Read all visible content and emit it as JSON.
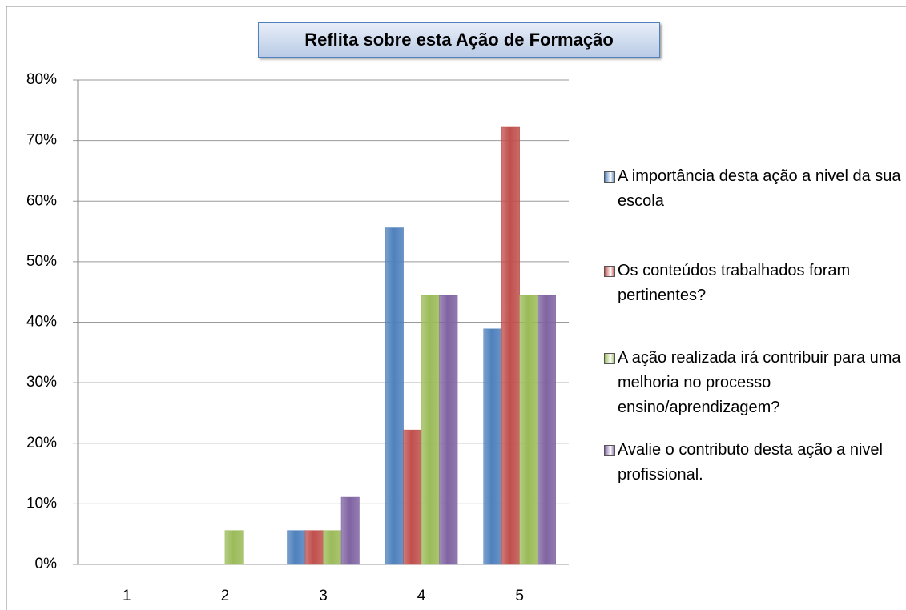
{
  "chart_data": {
    "type": "bar",
    "title": "Reflita sobre esta Ação de Formação",
    "categories": [
      "1",
      "2",
      "3",
      "4",
      "5"
    ],
    "series": [
      {
        "name": "A importância desta ação a nivel da sua escola",
        "color": "#4f81bd",
        "values": [
          0,
          0,
          5.6,
          55.6,
          38.9
        ]
      },
      {
        "name": "Os conteúdos trabalhados foram pertinentes?",
        "color": "#c0504d",
        "values": [
          0,
          0,
          5.6,
          22.2,
          72.2
        ]
      },
      {
        "name": "A ação realizada irá contribuir para uma melhoria no processo ensino/aprendizagem?",
        "color": "#9bbb59",
        "values": [
          0,
          5.6,
          5.6,
          44.4,
          44.4
        ]
      },
      {
        "name": "Avalie o contributo desta ação a nivel profissional.",
        "color": "#8064a2",
        "values": [
          0,
          0,
          11.1,
          44.4,
          44.4
        ]
      }
    ],
    "ylim": [
      0,
      80
    ],
    "yticks": [
      {
        "value": 0,
        "label": "0%"
      },
      {
        "value": 10,
        "label": "10%"
      },
      {
        "value": 20,
        "label": "20%"
      },
      {
        "value": 30,
        "label": "30%"
      },
      {
        "value": 40,
        "label": "40%"
      },
      {
        "value": 50,
        "label": "50%"
      },
      {
        "value": 60,
        "label": "60%"
      },
      {
        "value": 70,
        "label": "70%"
      },
      {
        "value": 80,
        "label": "80%"
      }
    ],
    "grid": true,
    "legend": "right"
  }
}
